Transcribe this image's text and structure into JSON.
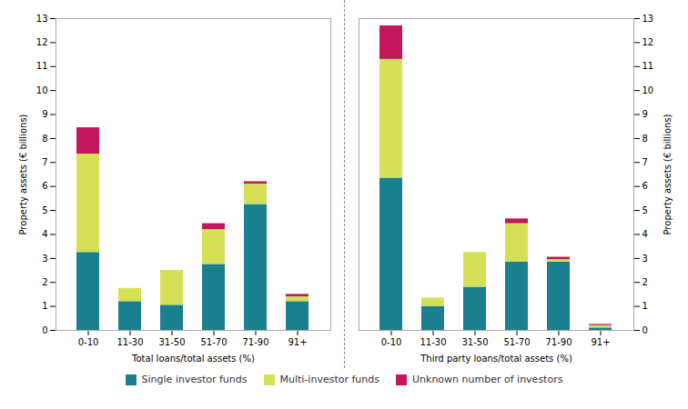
{
  "chart_data": [
    {
      "type": "bar",
      "stacked": true,
      "legend": "bottom",
      "categories": [
        "0-10",
        "11-30",
        "31-50",
        "51-70",
        "71-90",
        "91+"
      ],
      "xlabel": "Total loans/total assets (%)",
      "ylabel": "Property assets (€ billions)",
      "ylim": [
        0,
        13
      ],
      "yticks": [
        0,
        1,
        2,
        3,
        4,
        5,
        6,
        7,
        8,
        9,
        10,
        11,
        12,
        13
      ],
      "series": [
        {
          "name": "Single investor funds",
          "color": "#1a7f8e",
          "values": [
            3.25,
            1.2,
            1.05,
            2.75,
            5.25,
            1.2
          ]
        },
        {
          "name": "Multi-investor funds",
          "color": "#d4e157",
          "values": [
            4.1,
            0.55,
            1.45,
            1.45,
            0.85,
            0.2
          ]
        },
        {
          "name": "Unknown number of investors",
          "color": "#c2185b",
          "values": [
            1.1,
            0.0,
            0.0,
            0.25,
            0.1,
            0.1
          ]
        }
      ]
    },
    {
      "type": "bar",
      "stacked": true,
      "legend": "bottom",
      "categories": [
        "0-10",
        "11-30",
        "31-50",
        "51-70",
        "71-90",
        "91+"
      ],
      "xlabel": "Third party loans/total assets (%)",
      "ylabel": "Property assets (€ billions)",
      "ylim": [
        0,
        13
      ],
      "yticks": [
        0,
        1,
        2,
        3,
        4,
        5,
        6,
        7,
        8,
        9,
        10,
        11,
        12,
        13
      ],
      "series": [
        {
          "name": "Single investor funds",
          "color": "#1a7f8e",
          "values": [
            6.35,
            1.0,
            1.8,
            2.85,
            2.85,
            0.1
          ]
        },
        {
          "name": "Multi-investor funds",
          "color": "#d4e157",
          "values": [
            4.95,
            0.35,
            1.45,
            1.6,
            0.1,
            0.1
          ]
        },
        {
          "name": "Unknown number of investors",
          "color": "#c2185b",
          "values": [
            1.4,
            0.0,
            0.0,
            0.2,
            0.1,
            0.05
          ]
        }
      ]
    }
  ]
}
